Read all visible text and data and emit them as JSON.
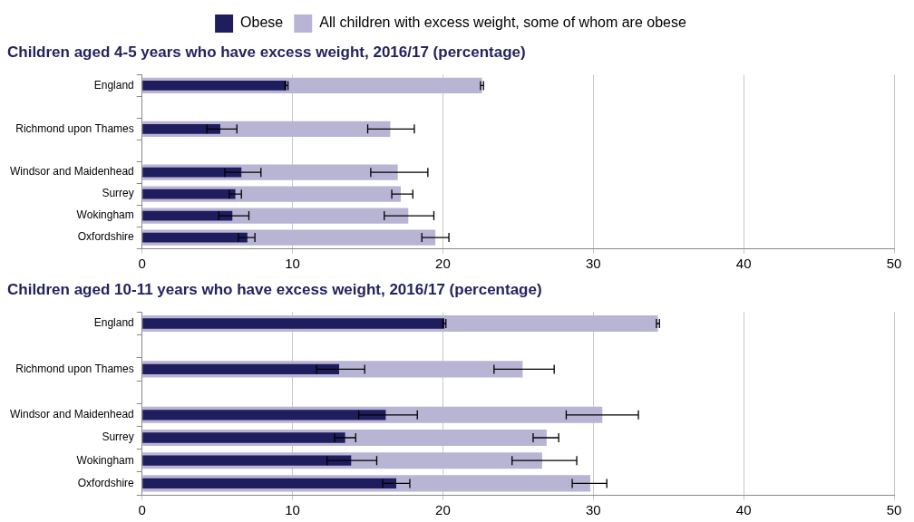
{
  "chart_data": [
    {
      "type": "bar",
      "orientation": "horizontal",
      "title": "Children aged 4-5 years who have excess weight, 2016/17 (percentage)",
      "categories": [
        "England",
        null,
        "Richmond upon Thames",
        null,
        "Windsor and Maidenhead",
        "Surrey",
        "Wokingham",
        "Oxfordshire"
      ],
      "series": [
        {
          "name": "Obese",
          "color": "#1f1d5e",
          "values": [
            9.6,
            null,
            5.2,
            null,
            6.6,
            6.2,
            6.0,
            7.0
          ],
          "errors": [
            [
              9.5,
              9.7
            ],
            null,
            [
              4.3,
              6.3
            ],
            null,
            [
              5.5,
              7.9
            ],
            [
              5.8,
              6.6
            ],
            [
              5.1,
              7.1
            ],
            [
              6.4,
              7.5
            ]
          ]
        },
        {
          "name": "All children with excess weight, some of whom are obese",
          "color": "#b8b4d3",
          "values": [
            22.6,
            null,
            16.5,
            null,
            17.0,
            17.2,
            17.7,
            19.5
          ],
          "errors": [
            [
              22.5,
              22.7
            ],
            null,
            [
              15.0,
              18.1
            ],
            null,
            [
              15.2,
              19.0
            ],
            [
              16.6,
              18.0
            ],
            [
              16.1,
              19.4
            ],
            [
              18.6,
              20.4
            ]
          ]
        }
      ],
      "xlim": [
        0,
        50
      ],
      "xticks": [
        0,
        10,
        20,
        30,
        40,
        50
      ],
      "grid": "x",
      "legend": "top"
    },
    {
      "type": "bar",
      "orientation": "horizontal",
      "title": "Children aged 10-11 years who have excess weight, 2016/17 (percentage)",
      "categories": [
        "England",
        null,
        "Richmond upon Thames",
        null,
        "Windsor and Maidenhead",
        "Surrey",
        "Wokingham",
        "Oxfordshire"
      ],
      "series": [
        {
          "color": "#1f1d5e",
          "values": [
            20.1,
            null,
            13.1,
            null,
            16.2,
            13.5,
            13.9,
            16.9
          ],
          "errors": [
            [
              20.0,
              20.2
            ],
            null,
            [
              11.6,
              14.8
            ],
            null,
            [
              14.4,
              18.3
            ],
            [
              12.8,
              14.2
            ],
            [
              12.3,
              15.6
            ],
            [
              16.0,
              17.8
            ]
          ]
        },
        {
          "color": "#b8b4d3",
          "values": [
            34.3,
            null,
            25.3,
            null,
            30.6,
            26.9,
            26.6,
            29.8
          ],
          "errors": [
            [
              34.2,
              34.4
            ],
            null,
            [
              23.4,
              27.4
            ],
            null,
            [
              28.2,
              33.0
            ],
            [
              26.0,
              27.7
            ],
            [
              24.6,
              28.9
            ],
            [
              28.6,
              30.9
            ]
          ]
        }
      ],
      "xlim": [
        0,
        50
      ],
      "xticks": [
        0,
        10,
        20,
        30,
        40,
        50
      ],
      "grid": "x"
    }
  ]
}
